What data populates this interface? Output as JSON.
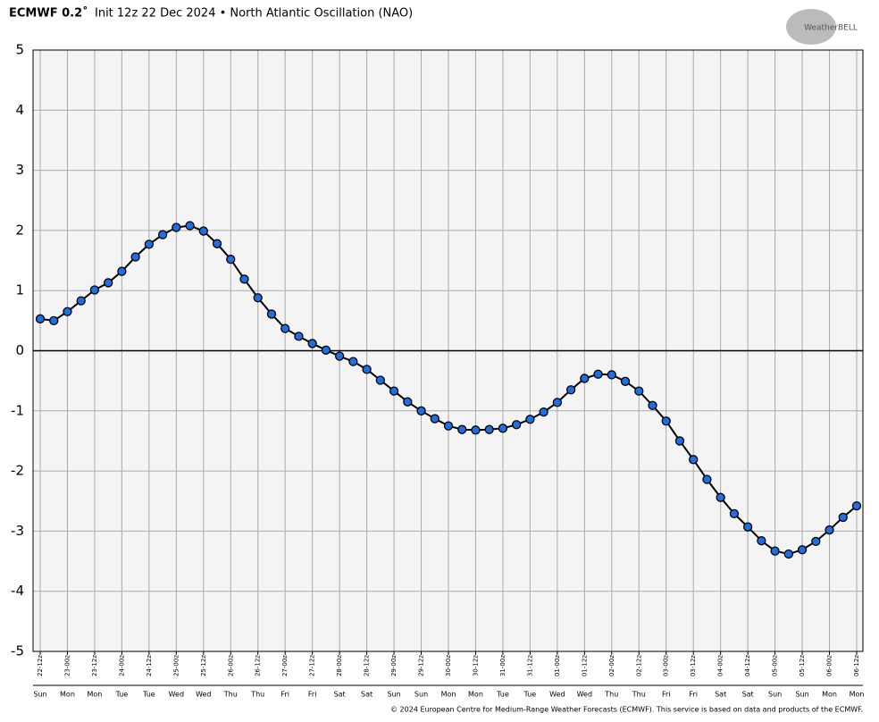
{
  "chart_data": {
    "type": "line",
    "title_bold": "ECMWF 0.2˚",
    "title": "Init 12z 22 Dec 2024 • North Atlantic Oscillation (NAO)",
    "logo": "WeatherBELL",
    "footer": "© 2024 European Centre for Medium-Range Weather Forecasts (ECMWF). This service is based on data and products of the ECMWF.",
    "categories": [
      "22-12z",
      null,
      "23-00z",
      null,
      "23-12z",
      null,
      "24-00z",
      null,
      "24-12z",
      null,
      "25-00z",
      null,
      "25-12z",
      null,
      "26-00z",
      null,
      "26-12z",
      null,
      "27-00z",
      null,
      "27-12z",
      null,
      "28-00z",
      null,
      "28-12z",
      null,
      "29-00z",
      null,
      "29-12z",
      null,
      "30-00z",
      null,
      "30-12z",
      null,
      "31-00z",
      null,
      "31-12z",
      null,
      "01-00z",
      null,
      "01-12z",
      null,
      "02-00z",
      null,
      "02-12z",
      null,
      "03-00z",
      null,
      "03-12z",
      null,
      "04-00z",
      null,
      "04-12z",
      null,
      "05-00z",
      null,
      "05-12z",
      null,
      "06-00z",
      null,
      "06-12z"
    ],
    "day_labels": [
      "Sun",
      null,
      "Mon",
      null,
      "Mon",
      null,
      "Tue",
      null,
      "Tue",
      null,
      "Wed",
      null,
      "Wed",
      null,
      "Thu",
      null,
      "Thu",
      null,
      "Fri",
      null,
      "Fri",
      null,
      "Sat",
      null,
      "Sat",
      null,
      "Sun",
      null,
      "Sun",
      null,
      "Mon",
      null,
      "Mon",
      null,
      "Tue",
      null,
      "Tue",
      null,
      "Wed",
      null,
      "Wed",
      null,
      "Thu",
      null,
      "Thu",
      null,
      "Fri",
      null,
      "Fri",
      null,
      "Sat",
      null,
      "Sat",
      null,
      "Sun",
      null,
      "Sun",
      null,
      "Mon",
      null,
      "Mon"
    ],
    "series": [
      {
        "name": "NAO",
        "color": "#1f6fe0",
        "values": [
          0.53,
          0.5,
          0.65,
          0.83,
          1.01,
          1.13,
          1.32,
          1.56,
          1.77,
          1.93,
          2.05,
          2.08,
          1.99,
          1.78,
          1.52,
          1.19,
          0.88,
          0.61,
          0.37,
          0.24,
          0.12,
          0.01,
          -0.09,
          -0.18,
          -0.31,
          -0.49,
          -0.67,
          -0.85,
          -1.0,
          -1.13,
          -1.25,
          -1.31,
          -1.32,
          -1.31,
          -1.29,
          -1.23,
          -1.14,
          -1.02,
          -0.86,
          -0.65,
          -0.46,
          -0.39,
          -0.4,
          -0.51,
          -0.67,
          -0.91,
          -1.17,
          -1.5,
          -1.81,
          -2.14,
          -2.44,
          -2.71,
          -2.93,
          -3.16,
          -3.33,
          -3.38,
          -3.31,
          -3.17,
          -2.98,
          -2.77,
          -2.58
        ]
      }
    ],
    "ylim": [
      -5,
      5
    ],
    "yticks": [
      -5,
      -4,
      -3,
      -2,
      -1,
      0,
      1,
      2,
      3,
      4,
      5
    ],
    "grid": true
  }
}
